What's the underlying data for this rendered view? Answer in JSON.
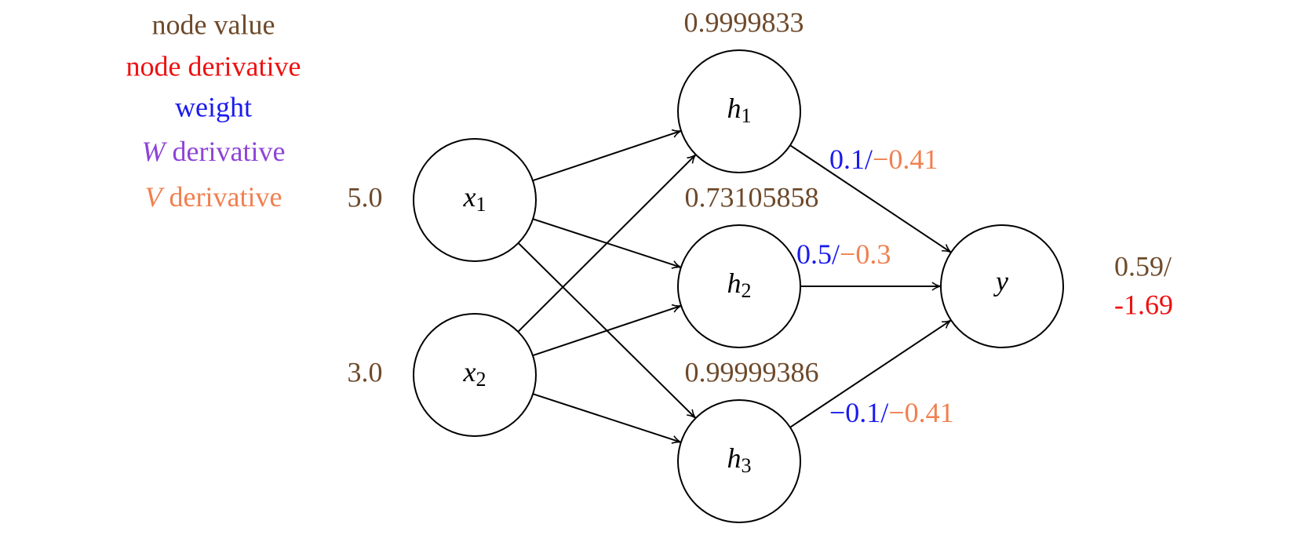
{
  "legend": [
    {
      "text": "node value"
    },
    {
      "text": "node derivative"
    },
    {
      "text": "weight"
    },
    {
      "symbol": "W",
      "text": "derivative"
    },
    {
      "symbol": "V",
      "text": "derivative"
    }
  ],
  "nodes": [
    {
      "label": "x",
      "subscript": "1",
      "value": "5.0"
    },
    {
      "label": "x",
      "subscript": "2",
      "value": "3.0"
    },
    {
      "label": "h",
      "subscript": "1",
      "value": "0.9999833"
    },
    {
      "label": "h",
      "subscript": "2",
      "value": "0.73105858"
    },
    {
      "label": "h",
      "subscript": "3",
      "value": "0.99999386"
    },
    {
      "label": "y",
      "value": "0.59/",
      "derivative": "-1.69"
    }
  ],
  "edge_labels": [
    {
      "weight": "0.1/",
      "derivative": "−0.41"
    },
    {
      "weight": "0.5/",
      "derivative": "−0.3"
    },
    {
      "weight": "−0.1/",
      "derivative": "−0.41"
    }
  ]
}
